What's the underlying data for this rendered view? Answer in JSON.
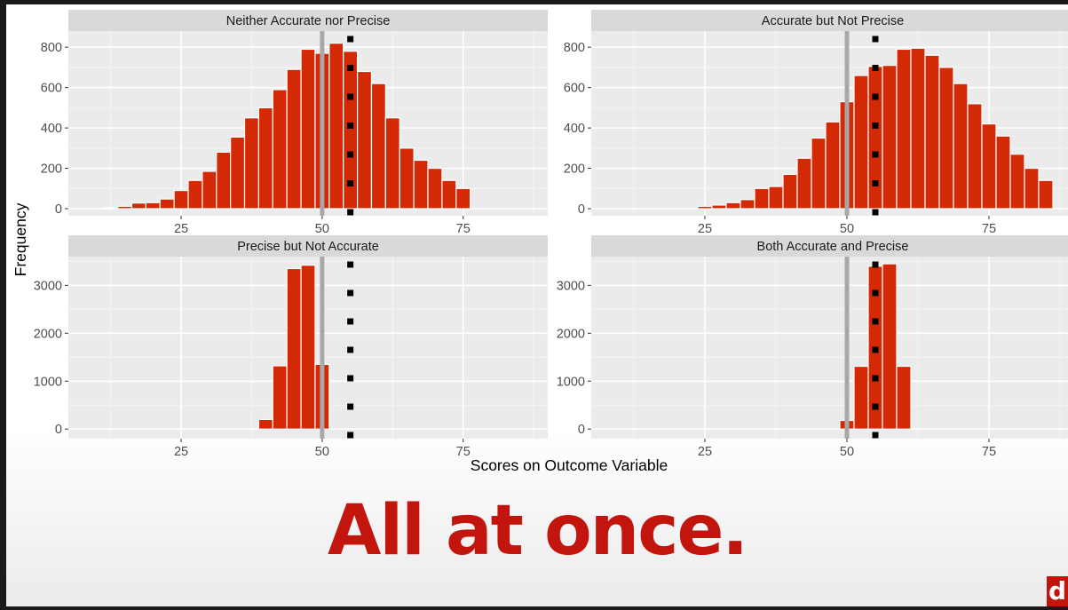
{
  "chart_data": {
    "type": "bar",
    "facet_layout": "2x2",
    "xlabel": "Scores on Outcome Variable",
    "ylabel": "Frequency",
    "xlim": [
      5,
      90
    ],
    "x_ticks": [
      25,
      50,
      75
    ],
    "true_value_line": 50,
    "estimate_marker": 55,
    "colors": {
      "bar": "#d32a05",
      "bar_outline": "#ffffff",
      "true_line": "#a8a8a8",
      "marker": "#000000",
      "panel_bg": "#ebebeb",
      "strip_bg": "#d9d9d9"
    },
    "bin_width": 2.5,
    "panels": [
      {
        "title": "Neither Accurate nor Precise",
        "ylim": [
          -35,
          880
        ],
        "y_ticks": [
          0,
          200,
          400,
          600,
          800
        ],
        "bins": [
          12.5,
          15,
          17.5,
          20,
          22.5,
          25,
          27.5,
          30,
          32.5,
          35,
          37.5,
          40,
          42.5,
          45,
          47.5,
          50,
          52.5,
          55,
          57.5,
          60,
          62.5,
          65,
          67.5,
          70,
          72.5,
          75
        ],
        "values": [
          5,
          12,
          28,
          30,
          48,
          90,
          140,
          185,
          280,
          355,
          450,
          500,
          590,
          690,
          790,
          770,
          820,
          780,
          680,
          620,
          450,
          300,
          240,
          200,
          140,
          100
        ]
      },
      {
        "title": "Accurate but Not Precise",
        "ylim": [
          -35,
          880
        ],
        "y_ticks": [
          0,
          200,
          400,
          600,
          800
        ],
        "bins": [
          25,
          27.5,
          30,
          32.5,
          35,
          37.5,
          40,
          42.5,
          45,
          47.5,
          50,
          52.5,
          55,
          57.5,
          60,
          62.5,
          65,
          67.5,
          70,
          72.5,
          75,
          77.5,
          80,
          82.5,
          85
        ],
        "values": [
          12,
          18,
          30,
          45,
          100,
          110,
          170,
          250,
          350,
          430,
          530,
          660,
          705,
          710,
          790,
          795,
          760,
          700,
          620,
          520,
          420,
          360,
          270,
          200,
          140
        ]
      },
      {
        "title": "Precise but Not Accurate",
        "ylim": [
          -200,
          3600
        ],
        "y_ticks": [
          0,
          1000,
          2000,
          3000
        ],
        "bins": [
          40,
          42.5,
          45,
          47.5,
          50
        ],
        "values": [
          200,
          1320,
          3350,
          3420,
          1350
        ]
      },
      {
        "title": "Both Accurate and Precise",
        "ylim": [
          -200,
          3600
        ],
        "y_ticks": [
          0,
          1000,
          2000,
          3000
        ],
        "bins": [
          50,
          52.5,
          55,
          57.5,
          60
        ],
        "values": [
          180,
          1310,
          3400,
          3450,
          1310
        ]
      }
    ]
  },
  "caption": "All at once.",
  "brand_mark": "d"
}
